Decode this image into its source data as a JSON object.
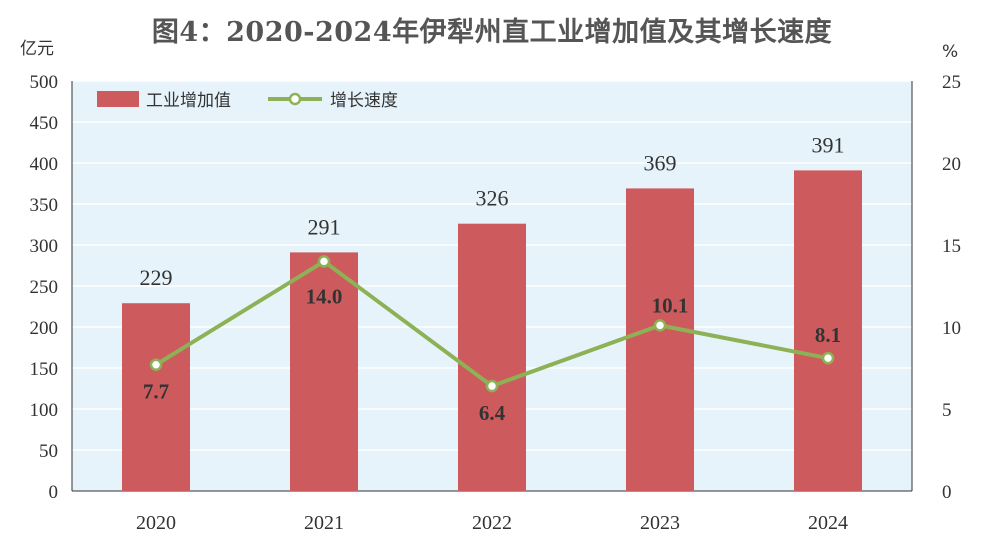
{
  "chart_data": {
    "type": "bar",
    "title": "图4：2020-2024年伊犁州直工业增加值及其增长速度",
    "y_left_unit": "亿元",
    "y_right_unit": "%",
    "categories": [
      "2020",
      "2021",
      "2022",
      "2023",
      "2024"
    ],
    "series": [
      {
        "name": "工业增加值",
        "type": "bar",
        "axis": "left",
        "color": "#CD5B5E",
        "values": [
          229,
          291,
          326,
          369,
          391
        ]
      },
      {
        "name": "增长速度",
        "type": "line",
        "axis": "right",
        "color": "#8DB255",
        "values": [
          7.7,
          14.0,
          6.4,
          10.1,
          8.1
        ]
      }
    ],
    "ylim_left": [
      0,
      500
    ],
    "ylim_right": [
      0,
      25
    ],
    "yticks_left": [
      "0",
      "50",
      "100",
      "150",
      "200",
      "250",
      "300",
      "350",
      "400",
      "450",
      "500"
    ],
    "yticks_right": [
      "0",
      "5",
      "10",
      "15",
      "20",
      "25"
    ],
    "bar_labels": [
      "229",
      "291",
      "326",
      "369",
      "391"
    ],
    "line_labels": [
      "7.7",
      "14.0",
      "6.4",
      "10.1",
      "8.1"
    ],
    "grid": true,
    "legend_position": "top-left"
  }
}
